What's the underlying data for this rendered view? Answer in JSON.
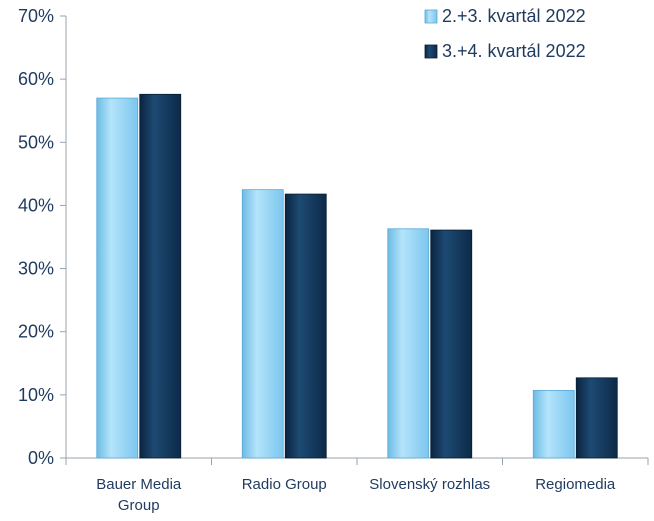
{
  "chart_data": {
    "type": "bar",
    "categories": [
      [
        "Bauer Media",
        "Group"
      ],
      [
        "Radio Group"
      ],
      [
        "Slovenský rozhlas"
      ],
      [
        "Regiomedia"
      ]
    ],
    "series": [
      {
        "name": "2.+3. kvartál 2022",
        "values": [
          57.0,
          42.5,
          36.3,
          10.7
        ],
        "color": "#8fd3f5"
      },
      {
        "name": "3.+4. kvartál 2022",
        "values": [
          57.6,
          41.8,
          36.1,
          12.7
        ],
        "color": "#0f2f50"
      }
    ],
    "yticks": [
      "0%",
      "10%",
      "20%",
      "30%",
      "40%",
      "50%",
      "60%",
      "70%"
    ],
    "ylim": [
      0,
      70
    ],
    "legend_position": "top-right",
    "grid": false
  }
}
